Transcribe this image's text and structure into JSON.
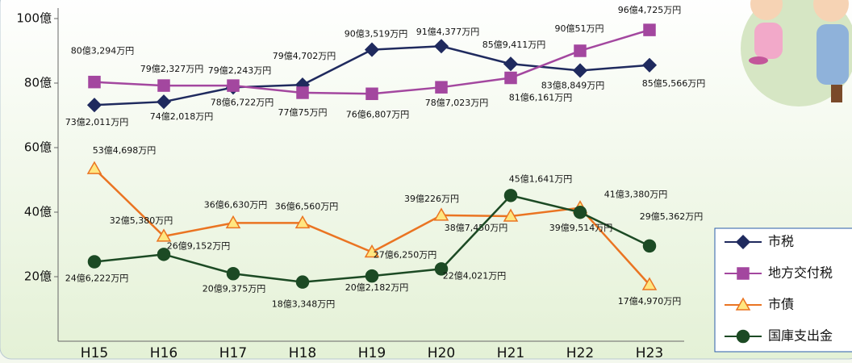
{
  "chart_data": {
    "type": "line",
    "categories": [
      "H15",
      "H16",
      "H17",
      "H18",
      "H19",
      "H20",
      "H21",
      "H22",
      "H23"
    ],
    "ylim": [
      0,
      100
    ],
    "yticks": [
      {
        "value": 20,
        "label": "20億"
      },
      {
        "value": 40,
        "label": "40億"
      },
      {
        "value": 60,
        "label": "60億"
      },
      {
        "value": 80,
        "label": "80億"
      },
      {
        "value": 100,
        "label": "100億"
      }
    ],
    "legend": "bottom-right",
    "series": [
      {
        "name": "市税",
        "color": "#1f2a5e",
        "marker": "diamond",
        "values": [
          73.2011,
          74.2018,
          78.6722,
          79.4702,
          90.3519,
          91.4377,
          85.9411,
          83.8849,
          85.5566
        ],
        "value_labels": [
          "73億2,011万円",
          "74億2,018万円",
          "78億6,722万円",
          "79億4,702万円",
          "90億3,519万円",
          "91億4,377万円",
          "85億9,411万円",
          "83億8,849万円",
          "85億5,566万円"
        ]
      },
      {
        "name": "地方交付税",
        "color": "#a3479f",
        "marker": "square",
        "values": [
          80.3294,
          79.2327,
          79.2243,
          77.0075,
          76.6807,
          78.7023,
          81.6161,
          90.0051,
          96.4725
        ],
        "value_labels": [
          "80億3,294万円",
          "79億2,327万円",
          "79億2,243万円",
          "77億75万円",
          "76億6,807万円",
          "78億7,023万円",
          "81億6,161万円",
          "90億51万円",
          "96億4,725万円"
        ]
      },
      {
        "name": "市債",
        "color": "#ea7422",
        "marker": "triangle",
        "values": [
          53.4698,
          32.538,
          36.663,
          36.656,
          27.625,
          39.0226,
          38.745,
          41.338,
          17.497
        ],
        "value_labels": [
          "53億4,698万円",
          "32億5,380万円",
          "36億6,630万円",
          "36億6,560万円",
          "27億6,250万円",
          "39億226万円",
          "38億7,450万円",
          "41億3,380万円",
          "17億4,970万円"
        ]
      },
      {
        "name": "国庫支出金",
        "color": "#1c4a24",
        "marker": "circle",
        "values": [
          24.6222,
          26.9152,
          20.9375,
          18.3348,
          20.2182,
          22.4021,
          45.1641,
          39.9514,
          29.5362
        ],
        "value_labels": [
          "24億6,222万円",
          "26億9,152万円",
          "20億9,375万円",
          "18億3,348万円",
          "20億2,182万円",
          "22億4,021万円",
          "45億1,641万円",
          "39億9,514万円",
          "29億5,362万円"
        ]
      }
    ]
  }
}
